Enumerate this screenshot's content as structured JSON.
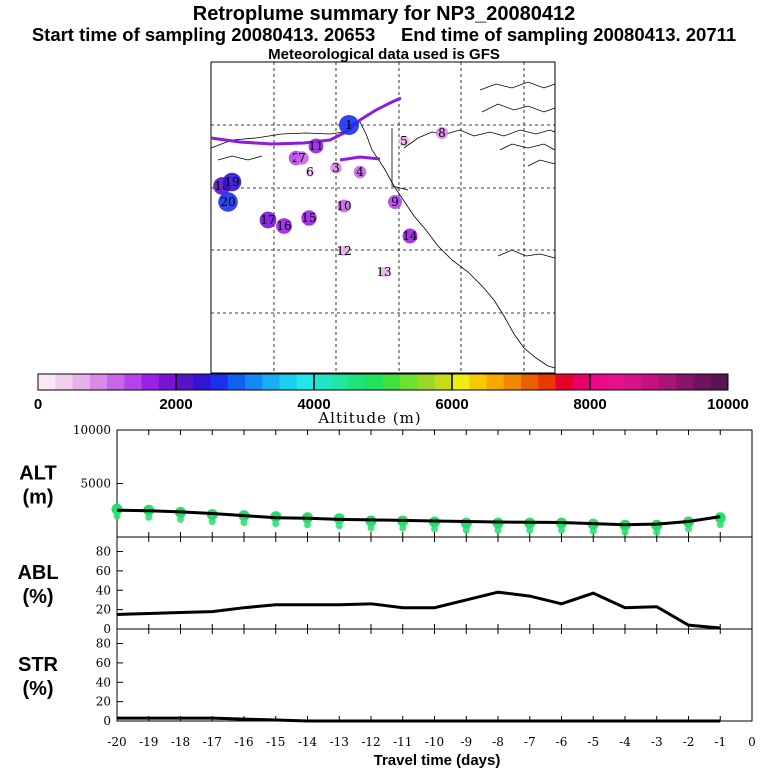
{
  "header": {
    "title": "Retroplume summary for NP3_20080412",
    "subtitle": "Start time of sampling 20080413. 20653     End time of sampling 20080413. 20711",
    "met": "Meteorological data used is GFS"
  },
  "colors": {
    "line": "#000000",
    "alt_points": "#22e06a",
    "plume_path": "#8a1ce6"
  },
  "colorbar": {
    "label": "Altitude (m)",
    "ticks": [
      "0",
      "2000",
      "4000",
      "6000",
      "8000",
      "10000"
    ],
    "min": 0,
    "max": 10000,
    "colors": [
      "#f8e8f8",
      "#f0cff0",
      "#e6b0ea",
      "#d98ae8",
      "#c766e6",
      "#b445e8",
      "#9a22e6",
      "#7a12d8",
      "#5a12c8",
      "#3314d2",
      "#1a30ee",
      "#1060f2",
      "#1488f4",
      "#18aef4",
      "#1ccef0",
      "#20e8e8",
      "#20e6c6",
      "#20e6a0",
      "#1ce47a",
      "#22e25c",
      "#40e040",
      "#6ee030",
      "#9ad828",
      "#c8da18",
      "#f0ec10",
      "#f8c800",
      "#f8a800",
      "#f08800",
      "#ea6000",
      "#ea3800",
      "#e80028",
      "#e6006a",
      "#ec0888",
      "#e6108e",
      "#d8108e",
      "#c41080",
      "#a81474",
      "#8a1468",
      "#6e145e",
      "#5a1452"
    ]
  },
  "map": {
    "labels": [
      {
        "text": "1",
        "alt": 2600
      },
      {
        "text": "2",
        "alt": 1400
      },
      {
        "text": "3",
        "alt": 800
      },
      {
        "text": "4",
        "alt": 1000
      },
      {
        "text": "5",
        "alt": 600
      },
      {
        "text": "6",
        "alt": 400
      },
      {
        "text": "7",
        "alt": 1200
      },
      {
        "text": "8",
        "alt": 900
      },
      {
        "text": "9",
        "alt": 1300
      },
      {
        "text": "10",
        "alt": 1100
      },
      {
        "text": "11",
        "alt": 1500
      },
      {
        "text": "12",
        "alt": 600
      },
      {
        "text": "13",
        "alt": 500
      },
      {
        "text": "14",
        "alt": 1500
      },
      {
        "text": "15",
        "alt": 1600
      },
      {
        "text": "16",
        "alt": 1700
      },
      {
        "text": "17",
        "alt": 1900
      },
      {
        "text": "18",
        "alt": 2100
      },
      {
        "text": "19",
        "alt": 2300
      },
      {
        "text": "20",
        "alt": 2500
      }
    ]
  },
  "chart_data": [
    {
      "type": "scatter",
      "name": "ALT",
      "ylabel": "ALT",
      "yunit": "(m)",
      "ylim": [
        0,
        10000
      ],
      "yticks": [
        5000,
        10000
      ],
      "x": [
        -20,
        -19,
        -18,
        -17,
        -16,
        -15,
        -14,
        -13,
        -12,
        -11,
        -10,
        -9,
        -8,
        -7,
        -6,
        -5,
        -4,
        -3,
        -2,
        -1
      ],
      "values": [
        2600,
        2500,
        2300,
        2100,
        2000,
        1900,
        1800,
        1700,
        1500,
        1500,
        1400,
        1300,
        1300,
        1300,
        1300,
        1200,
        1100,
        1100,
        1400,
        1800
      ],
      "line": [
        2500,
        2450,
        2350,
        2200,
        2000,
        1800,
        1750,
        1650,
        1600,
        1550,
        1500,
        1450,
        1400,
        1380,
        1350,
        1250,
        1150,
        1200,
        1450,
        1900
      ]
    },
    {
      "type": "line",
      "name": "ABL",
      "ylabel": "ABL",
      "yunit": "(%)",
      "ylim": [
        0,
        95
      ],
      "yticks": [
        0,
        20,
        40,
        60,
        80
      ],
      "x": [
        -20,
        -19,
        -18,
        -17,
        -16,
        -15,
        -14,
        -13,
        -12,
        -11,
        -10,
        -9,
        -8,
        -7,
        -6,
        -5,
        -4,
        -3,
        -2,
        -1
      ],
      "values": [
        15,
        16,
        17,
        18,
        22,
        25,
        25,
        25,
        26,
        22,
        22,
        30,
        38,
        34,
        26,
        37,
        22,
        23,
        4,
        1
      ]
    },
    {
      "type": "line",
      "name": "STR",
      "ylabel": "STR",
      "yunit": "(%)",
      "ylim": [
        0,
        95
      ],
      "yticks": [
        0,
        20,
        40,
        60,
        80
      ],
      "x": [
        -20,
        -19,
        -18,
        -17,
        -16,
        -15,
        -14,
        -13,
        -12,
        -11,
        -10,
        -9,
        -8,
        -7,
        -6,
        -5,
        -4,
        -3,
        -2,
        -1
      ],
      "values": [
        3,
        3,
        3,
        3,
        2,
        1,
        0,
        0,
        0,
        0,
        0,
        0,
        0,
        0,
        0,
        0,
        0,
        0,
        0,
        0
      ]
    }
  ],
  "xaxis": {
    "label": "Travel time (days)",
    "ticks": [
      "-20",
      "-19",
      "-18",
      "-17",
      "-16",
      "-15",
      "-14",
      "-13",
      "-12",
      "-11",
      "-10",
      "-9",
      "-8",
      "-7",
      "-6",
      "-5",
      "-4",
      "-3",
      "-2",
      "-1",
      "0"
    ]
  }
}
